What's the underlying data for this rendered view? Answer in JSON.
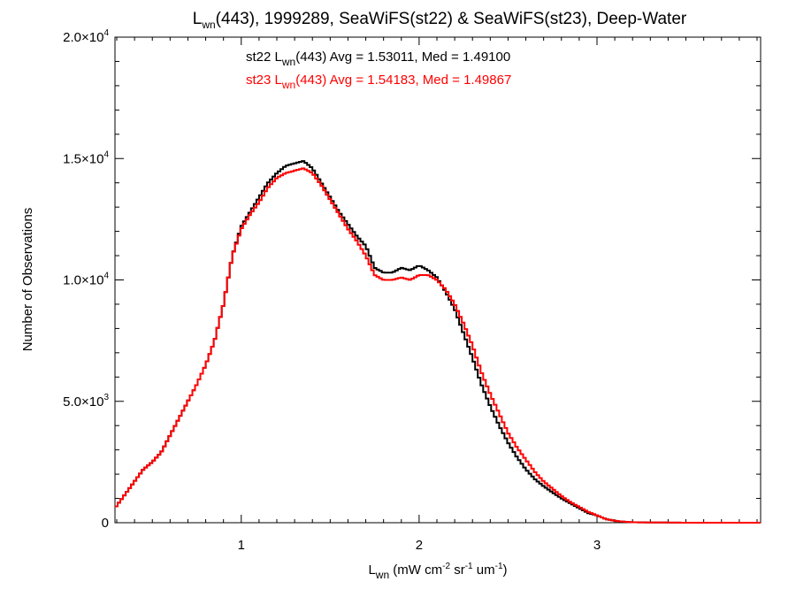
{
  "chart_data": {
    "type": "line",
    "title_parts": [
      "L",
      "wn",
      "(443), 1999289, SeaWiFS(st22) & SeaWiFS(st23), Deep-Water"
    ],
    "xlabel_parts": [
      "L",
      "wn",
      " (mW cm",
      "-2",
      " sr",
      "-1",
      " um",
      "-1",
      ")"
    ],
    "ylabel": "Number of Observations",
    "xlim": [
      0.29,
      3.92
    ],
    "ylim": [
      0,
      20000
    ],
    "x_ticks": [
      1,
      2,
      3
    ],
    "x_tick_labels": [
      "1",
      "2",
      "3"
    ],
    "y_ticks": [
      0,
      5000,
      10000,
      15000,
      20000
    ],
    "y_tick_labels": [
      {
        "base": "0",
        "exp": ""
      },
      {
        "base": "5.0×10",
        "exp": "3"
      },
      {
        "base": "1.0×10",
        "exp": "4"
      },
      {
        "base": "1.5×10",
        "exp": "4"
      },
      {
        "base": "2.0×10",
        "exp": "4"
      }
    ],
    "grid": false,
    "legend_placement": "top-center",
    "legend": [
      {
        "pre": "st22 L",
        "sub": "wn",
        "post": "(443) Avg = 1.53011, Med = 1.49100",
        "color": "#000000"
      },
      {
        "pre": "st23 L",
        "sub": "wn",
        "post": "(443) Avg = 1.54183, Med = 1.49867",
        "color": "#ff0000"
      }
    ],
    "series": [
      {
        "color": "#000000",
        "x": [
          0.29,
          0.35,
          0.4,
          0.45,
          0.5,
          0.55,
          0.6,
          0.65,
          0.7,
          0.75,
          0.8,
          0.85,
          0.9,
          0.95,
          1.0,
          1.05,
          1.1,
          1.15,
          1.2,
          1.25,
          1.3,
          1.35,
          1.4,
          1.45,
          1.5,
          1.55,
          1.6,
          1.65,
          1.7,
          1.75,
          1.8,
          1.85,
          1.9,
          1.95,
          2.0,
          2.05,
          2.1,
          2.15,
          2.2,
          2.25,
          2.3,
          2.35,
          2.4,
          2.45,
          2.5,
          2.55,
          2.6,
          2.65,
          2.7,
          2.75,
          2.8,
          2.85,
          2.9,
          2.95,
          3.0,
          3.05,
          3.1,
          3.15,
          3.2,
          3.3,
          3.4,
          3.5,
          3.6,
          3.7,
          3.8,
          3.92
        ],
        "y": [
          600,
          1200,
          1700,
          2200,
          2500,
          2900,
          3600,
          4300,
          5000,
          5700,
          6500,
          7500,
          9000,
          11000,
          12200,
          12800,
          13400,
          14000,
          14400,
          14700,
          14800,
          14900,
          14600,
          14000,
          13400,
          12800,
          12300,
          11800,
          11400,
          10500,
          10300,
          10300,
          10500,
          10400,
          10600,
          10400,
          10100,
          9500,
          8800,
          7800,
          6800,
          5700,
          4800,
          4000,
          3300,
          2700,
          2200,
          1800,
          1500,
          1250,
          1000,
          800,
          600,
          400,
          300,
          150,
          80,
          40,
          20,
          10,
          5,
          0,
          0,
          0,
          0,
          0
        ]
      },
      {
        "color": "#ff0000",
        "x": [
          0.29,
          0.35,
          0.4,
          0.45,
          0.5,
          0.55,
          0.6,
          0.65,
          0.7,
          0.75,
          0.8,
          0.85,
          0.9,
          0.95,
          1.0,
          1.05,
          1.1,
          1.15,
          1.2,
          1.25,
          1.3,
          1.35,
          1.4,
          1.45,
          1.5,
          1.55,
          1.6,
          1.65,
          1.7,
          1.75,
          1.8,
          1.85,
          1.9,
          1.95,
          2.0,
          2.05,
          2.1,
          2.15,
          2.2,
          2.25,
          2.3,
          2.35,
          2.4,
          2.45,
          2.5,
          2.55,
          2.6,
          2.65,
          2.7,
          2.75,
          2.8,
          2.85,
          2.9,
          2.95,
          3.0,
          3.05,
          3.1,
          3.15,
          3.2,
          3.3,
          3.4,
          3.5,
          3.6,
          3.7,
          3.8,
          3.92
        ],
        "y": [
          600,
          1200,
          1700,
          2200,
          2500,
          2900,
          3600,
          4300,
          5000,
          5700,
          6500,
          7500,
          9000,
          11000,
          12100,
          12700,
          13200,
          13800,
          14200,
          14400,
          14500,
          14600,
          14400,
          13900,
          13300,
          12700,
          12100,
          11600,
          11000,
          10200,
          10000,
          10000,
          10100,
          10000,
          10200,
          10200,
          10000,
          9600,
          9000,
          8200,
          7300,
          6200,
          5300,
          4500,
          3700,
          3100,
          2600,
          2100,
          1700,
          1400,
          1100,
          850,
          650,
          450,
          300,
          150,
          80,
          40,
          20,
          10,
          5,
          0,
          0,
          0,
          0,
          0
        ]
      }
    ]
  }
}
